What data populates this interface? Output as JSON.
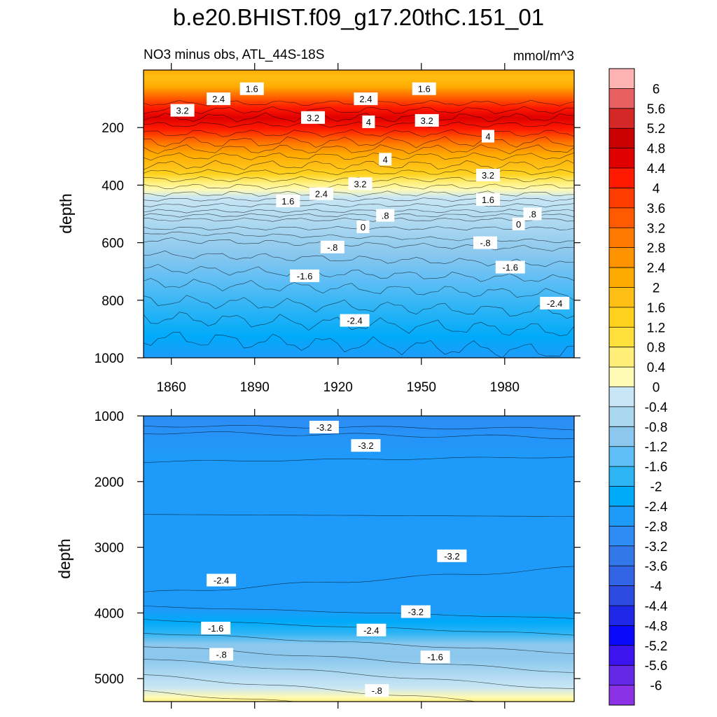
{
  "title": "b.e20.BHIST.f09_g17.20thC.151_01",
  "subtitle_left": "NO3 minus obs, ATL_44S-18S",
  "units": "mmol/m^3",
  "chart_data": [
    {
      "type": "heatmap",
      "panel": "upper",
      "ylabel": "depth",
      "ylim": [
        0,
        1000
      ],
      "y_ticks": [
        "200",
        "400",
        "600",
        "800",
        "1000"
      ],
      "y_tick_values": [
        200,
        400,
        600,
        800,
        1000
      ],
      "x_ticks": [
        "1860",
        "1890",
        "1920",
        "1950",
        "1980"
      ],
      "x_tick_values": [
        1860,
        1890,
        1920,
        1950,
        1980
      ],
      "xlim": [
        1850,
        2005
      ],
      "contour_labels": [
        {
          "text": "3.2",
          "x": 1864,
          "y": 140
        },
        {
          "text": "2.4",
          "x": 1877,
          "y": 100
        },
        {
          "text": "1.6",
          "x": 1889,
          "y": 65
        },
        {
          "text": "2.4",
          "x": 1930,
          "y": 100
        },
        {
          "text": "1.6",
          "x": 1951,
          "y": 65
        },
        {
          "text": "3.2",
          "x": 1911,
          "y": 165
        },
        {
          "text": "4",
          "x": 1931,
          "y": 180
        },
        {
          "text": "3.2",
          "x": 1952,
          "y": 175
        },
        {
          "text": "4",
          "x": 1974,
          "y": 230
        },
        {
          "text": "4",
          "x": 1937,
          "y": 310
        },
        {
          "text": "3.2",
          "x": 1974,
          "y": 365
        },
        {
          "text": "3.2",
          "x": 1928,
          "y": 395
        },
        {
          "text": "2.4",
          "x": 1914,
          "y": 430
        },
        {
          "text": "1.6",
          "x": 1902,
          "y": 455
        },
        {
          "text": "1.6",
          "x": 1974,
          "y": 450
        },
        {
          "text": ".8",
          "x": 1937,
          "y": 505
        },
        {
          "text": ".8",
          "x": 1990,
          "y": 500
        },
        {
          "text": "0",
          "x": 1929,
          "y": 545
        },
        {
          "text": "0",
          "x": 1985,
          "y": 535
        },
        {
          "text": "-.8",
          "x": 1918,
          "y": 615
        },
        {
          "text": "-.8",
          "x": 1973,
          "y": 600
        },
        {
          "text": "-1.6",
          "x": 1908,
          "y": 715
        },
        {
          "text": "-1.6",
          "x": 1982,
          "y": 685
        },
        {
          "text": "-2.4",
          "x": 1926,
          "y": 870
        },
        {
          "text": "-2.4",
          "x": 1998,
          "y": 810
        }
      ]
    },
    {
      "type": "heatmap",
      "panel": "lower",
      "ylabel": "depth",
      "ylim": [
        1000,
        5350
      ],
      "y_ticks": [
        "1000",
        "2000",
        "3000",
        "4000",
        "5000"
      ],
      "y_tick_values": [
        1000,
        2000,
        3000,
        4000,
        5000
      ],
      "xlim": [
        1850,
        2005
      ],
      "contour_labels": [
        {
          "text": "-3.2",
          "x": 1915,
          "y": 1170
        },
        {
          "text": "-3.2",
          "x": 1930,
          "y": 1450
        },
        {
          "text": "-2.4",
          "x": 1878,
          "y": 3500
        },
        {
          "text": "-3.2",
          "x": 1961,
          "y": 3130
        },
        {
          "text": "-3.2",
          "x": 1948,
          "y": 3980
        },
        {
          "text": "-1.6",
          "x": 1876,
          "y": 4230
        },
        {
          "text": "-2.4",
          "x": 1932,
          "y": 4260
        },
        {
          "text": "-.8",
          "x": 1878,
          "y": 4630
        },
        {
          "text": "-1.6",
          "x": 1955,
          "y": 4670
        },
        {
          "text": "-.8",
          "x": 1934,
          "y": 5180
        }
      ]
    }
  ],
  "colorbar": {
    "labels": [
      "6",
      "5.6",
      "5.2",
      "4.8",
      "4.4",
      "4",
      "3.6",
      "3.2",
      "2.8",
      "2.4",
      "2",
      "1.6",
      "1.2",
      "0.8",
      "0.4",
      "0",
      "-0.4",
      "-0.8",
      "-1.2",
      "-1.6",
      "-2",
      "-2.4",
      "-2.8",
      "-3.2",
      "-3.6",
      "-4",
      "-4.4",
      "-4.8",
      "-5.2",
      "-5.6",
      "-6"
    ],
    "colors": [
      "#FFB3B3",
      "#E86060",
      "#D42828",
      "#C80000",
      "#E00000",
      "#FF1A00",
      "#FF3C00",
      "#FF5A00",
      "#FF7800",
      "#FF9400",
      "#FFAA00",
      "#FFBF14",
      "#FFD21E",
      "#FFE03C",
      "#FFEF78",
      "#FFFAB4",
      "#C8E6F5",
      "#AAD7F0",
      "#8CC8EE",
      "#5FBEF5",
      "#2DB4F5",
      "#00AAFA",
      "#1E9BFA",
      "#2D8CF5",
      "#3278EB",
      "#3264E6",
      "#2D4BE1",
      "#1E28E6",
      "#0A0AFA",
      "#3C14F0",
      "#6428E6",
      "#8C32E6"
    ]
  }
}
